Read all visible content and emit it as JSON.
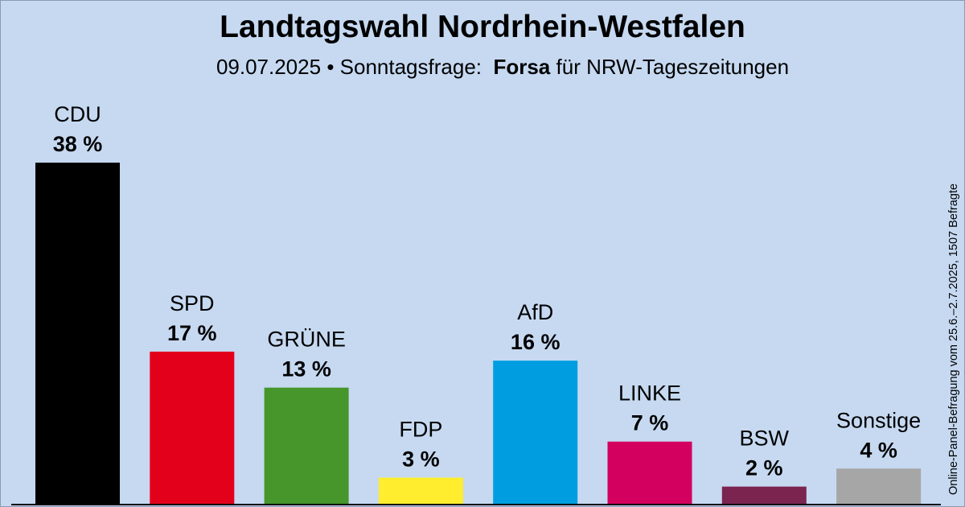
{
  "colors": {
    "background": "#c6d9f1",
    "baseline": "#000000"
  },
  "title": "Landtagswahl Nordrhein-Westfalen",
  "subtitle": {
    "date": "09.07.2025",
    "separator": "•",
    "type": "Sonntagsfrage:",
    "institute": "Forsa",
    "client": "für NRW-Tageszeitungen"
  },
  "source_note": "Online-Panel-Befragung vom 25.6.–2.7.2025, 1507 Befragte",
  "chart_data": {
    "type": "bar",
    "title": "Landtagswahl Nordrhein-Westfalen",
    "xlabel": "",
    "ylabel": "",
    "unit": "%",
    "ylim": [
      0,
      38
    ],
    "grid": false,
    "categories": [
      "CDU",
      "SPD",
      "GRÜNE",
      "FDP",
      "AfD",
      "LINKE",
      "BSW",
      "Sonstige"
    ],
    "values": [
      38,
      17,
      13,
      3,
      16,
      7,
      2,
      4
    ],
    "value_labels": [
      "38 %",
      "17 %",
      "13 %",
      "3 %",
      "16 %",
      "7 %",
      "2 %",
      "4 %"
    ],
    "colors": [
      "#000000",
      "#e3001b",
      "#46962b",
      "#ffed2e",
      "#009ee0",
      "#d4005f",
      "#7b2450",
      "#a6a6a6"
    ]
  }
}
